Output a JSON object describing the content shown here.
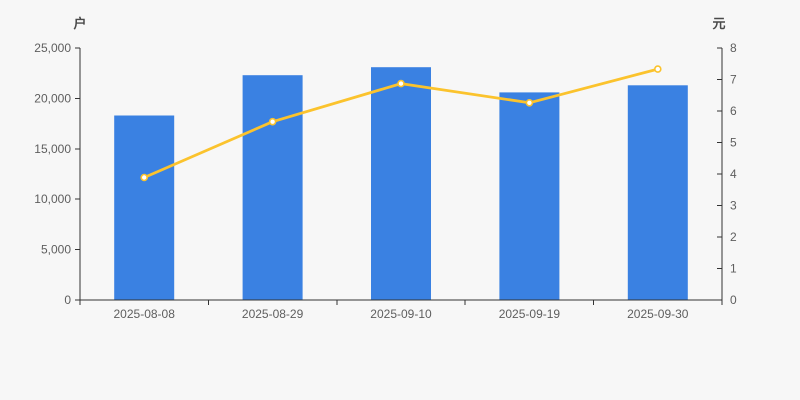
{
  "page": {
    "background": "#f7f7f7"
  },
  "chart_data": {
    "type": "bar+line",
    "categories": [
      "2025-08-08",
      "2025-08-29",
      "2025-09-10",
      "2025-09-19",
      "2025-09-30"
    ],
    "series": [
      {
        "id": "holders-bar",
        "type": "bar",
        "axis": "left",
        "values": [
          18300,
          22300,
          23100,
          20600,
          21300
        ]
      },
      {
        "id": "price-line",
        "type": "line",
        "axis": "right",
        "values": [
          3.89,
          5.66,
          6.87,
          6.26,
          7.33
        ],
        "marker": "hollow-circle"
      }
    ],
    "y_left": {
      "name": "户",
      "min": 0,
      "max": 25000,
      "interval": 5000,
      "tick_labels": [
        "0",
        "5,000",
        "10,000",
        "15,000",
        "20,000",
        "25,000"
      ]
    },
    "y_right": {
      "name": "元",
      "min": 0,
      "max": 8,
      "interval": 1,
      "tick_labels": [
        "0",
        "1",
        "2",
        "3",
        "4",
        "5",
        "6",
        "7",
        "8"
      ]
    },
    "grid": false,
    "legend_position": "none"
  },
  "colors": {
    "background": "#f7f7f7",
    "bar": "#3a81e2",
    "line": "#fbc32d",
    "marker_fill": "#ffffff",
    "axis_line": "#333333",
    "tick_label": "#5e5e5e",
    "axis_name": "#4a4a4a"
  }
}
